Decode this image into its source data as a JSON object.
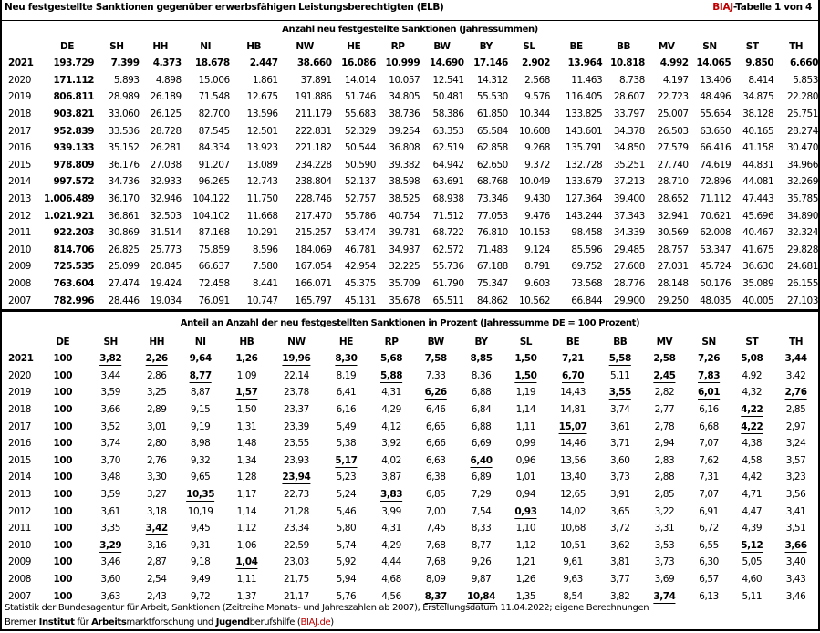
{
  "header": {
    "title": "Neu festgestellte Sanktionen gegenüber erwerbsfähigen Leistungsberechtigten (ELB)",
    "tag_brand": "BIAJ",
    "tag_rest": "-Tabelle 1 von 4",
    "brand_color": "#c00000"
  },
  "columns": [
    "DE",
    "SH",
    "HH",
    "NI",
    "HB",
    "NW",
    "HE",
    "RP",
    "BW",
    "BY",
    "SL",
    "BE",
    "BB",
    "MV",
    "SN",
    "ST",
    "TH"
  ],
  "absolute": {
    "caption": "Anzahl neu festgestellte Sanktionen (Jahressummen)",
    "rows": [
      {
        "year": "2021",
        "bold": true,
        "values": [
          "193.729",
          "7.399",
          "4.373",
          "18.678",
          "2.447",
          "38.660",
          "16.086",
          "10.999",
          "14.690",
          "17.146",
          "2.902",
          "13.964",
          "10.818",
          "4.992",
          "14.065",
          "9.850",
          "6.660"
        ]
      },
      {
        "year": "2020",
        "values": [
          "171.112",
          "5.893",
          "4.898",
          "15.006",
          "1.861",
          "37.891",
          "14.014",
          "10.057",
          "12.541",
          "14.312",
          "2.568",
          "11.463",
          "8.738",
          "4.197",
          "13.406",
          "8.414",
          "5.853"
        ]
      },
      {
        "year": "2019",
        "values": [
          "806.811",
          "28.989",
          "26.189",
          "71.548",
          "12.675",
          "191.886",
          "51.746",
          "34.805",
          "50.481",
          "55.530",
          "9.576",
          "116.405",
          "28.607",
          "22.723",
          "48.496",
          "34.875",
          "22.280"
        ]
      },
      {
        "year": "2018",
        "values": [
          "903.821",
          "33.060",
          "26.125",
          "82.700",
          "13.596",
          "211.179",
          "55.683",
          "38.736",
          "58.386",
          "61.850",
          "10.344",
          "133.825",
          "33.797",
          "25.007",
          "55.654",
          "38.128",
          "25.751"
        ]
      },
      {
        "year": "2017",
        "values": [
          "952.839",
          "33.536",
          "28.728",
          "87.545",
          "12.501",
          "222.831",
          "52.329",
          "39.254",
          "63.353",
          "65.584",
          "10.608",
          "143.601",
          "34.378",
          "26.503",
          "63.650",
          "40.165",
          "28.274"
        ]
      },
      {
        "year": "2016",
        "values": [
          "939.133",
          "35.152",
          "26.281",
          "84.334",
          "13.923",
          "221.182",
          "50.544",
          "36.808",
          "62.519",
          "62.858",
          "9.268",
          "135.791",
          "34.850",
          "27.579",
          "66.416",
          "41.158",
          "30.470"
        ]
      },
      {
        "year": "2015",
        "values": [
          "978.809",
          "36.176",
          "27.038",
          "91.207",
          "13.089",
          "234.228",
          "50.590",
          "39.382",
          "64.942",
          "62.650",
          "9.372",
          "132.728",
          "35.251",
          "27.740",
          "74.619",
          "44.831",
          "34.966"
        ]
      },
      {
        "year": "2014",
        "values": [
          "997.572",
          "34.736",
          "32.933",
          "96.265",
          "12.743",
          "238.804",
          "52.137",
          "38.598",
          "63.691",
          "68.768",
          "10.049",
          "133.679",
          "37.213",
          "28.710",
          "72.896",
          "44.081",
          "32.269"
        ]
      },
      {
        "year": "2013",
        "values": [
          "1.006.489",
          "36.170",
          "32.946",
          "104.122",
          "11.750",
          "228.746",
          "52.757",
          "38.525",
          "68.938",
          "73.346",
          "9.430",
          "127.364",
          "39.400",
          "28.652",
          "71.112",
          "47.443",
          "35.785"
        ]
      },
      {
        "year": "2012",
        "values": [
          "1.021.921",
          "36.861",
          "32.503",
          "104.102",
          "11.668",
          "217.470",
          "55.786",
          "40.754",
          "71.512",
          "77.053",
          "9.476",
          "143.244",
          "37.343",
          "32.941",
          "70.621",
          "45.696",
          "34.890"
        ]
      },
      {
        "year": "2011",
        "values": [
          "922.203",
          "30.869",
          "31.514",
          "87.168",
          "10.291",
          "215.257",
          "53.474",
          "39.781",
          "68.722",
          "76.810",
          "10.153",
          "98.458",
          "34.339",
          "30.569",
          "62.008",
          "40.467",
          "32.324"
        ]
      },
      {
        "year": "2010",
        "values": [
          "814.706",
          "26.825",
          "25.773",
          "75.859",
          "8.596",
          "184.069",
          "46.781",
          "34.937",
          "62.572",
          "71.483",
          "9.124",
          "85.596",
          "29.485",
          "28.757",
          "53.347",
          "41.675",
          "29.828"
        ]
      },
      {
        "year": "2009",
        "values": [
          "725.535",
          "25.099",
          "20.845",
          "66.637",
          "7.580",
          "167.054",
          "42.954",
          "32.225",
          "55.736",
          "67.188",
          "8.791",
          "69.752",
          "27.608",
          "27.031",
          "45.724",
          "36.630",
          "24.681"
        ]
      },
      {
        "year": "2008",
        "values": [
          "763.604",
          "27.474",
          "19.424",
          "72.458",
          "8.441",
          "166.071",
          "45.375",
          "35.709",
          "61.790",
          "75.347",
          "9.603",
          "73.568",
          "28.776",
          "28.148",
          "50.176",
          "35.089",
          "26.155"
        ]
      },
      {
        "year": "2007",
        "values": [
          "782.996",
          "28.446",
          "19.034",
          "76.091",
          "10.747",
          "165.797",
          "45.131",
          "35.678",
          "65.511",
          "84.862",
          "10.562",
          "66.844",
          "29.900",
          "29.250",
          "48.035",
          "40.005",
          "27.103"
        ]
      }
    ]
  },
  "percent": {
    "caption": "Anteil an Anzahl der neu festgestellten Sanktionen in Prozent (Jahressumme DE = 100 Prozent)",
    "rows": [
      {
        "year": "2021",
        "bold": true,
        "values": [
          "100",
          "3,82",
          "2,26",
          "9,64",
          "1,26",
          "19,96",
          "8,30",
          "5,68",
          "7,58",
          "8,85",
          "1,50",
          "7,21",
          "5,58",
          "2,58",
          "7,26",
          "5,08",
          "3,44"
        ],
        "underlined": [
          1,
          2,
          5,
          6,
          12
        ]
      },
      {
        "year": "2020",
        "values": [
          "100",
          "3,44",
          "2,86",
          "8,77",
          "1,09",
          "22,14",
          "8,19",
          "5,88",
          "7,33",
          "8,36",
          "1,50",
          "6,70",
          "5,11",
          "2,45",
          "7,83",
          "4,92",
          "3,42"
        ],
        "underlined": [
          3,
          7,
          10,
          11,
          13,
          14
        ]
      },
      {
        "year": "2019",
        "values": [
          "100",
          "3,59",
          "3,25",
          "8,87",
          "1,57",
          "23,78",
          "6,41",
          "4,31",
          "6,26",
          "6,88",
          "1,19",
          "14,43",
          "3,55",
          "2,82",
          "6,01",
          "4,32",
          "2,76"
        ],
        "underlined": [
          4,
          8,
          12,
          14,
          16
        ]
      },
      {
        "year": "2018",
        "values": [
          "100",
          "3,66",
          "2,89",
          "9,15",
          "1,50",
          "23,37",
          "6,16",
          "4,29",
          "6,46",
          "6,84",
          "1,14",
          "14,81",
          "3,74",
          "2,77",
          "6,16",
          "4,22",
          "2,85"
        ],
        "underlined": [
          15
        ]
      },
      {
        "year": "2017",
        "values": [
          "100",
          "3,52",
          "3,01",
          "9,19",
          "1,31",
          "23,39",
          "5,49",
          "4,12",
          "6,65",
          "6,88",
          "1,11",
          "15,07",
          "3,61",
          "2,78",
          "6,68",
          "4,22",
          "2,97"
        ],
        "underlined": [
          11,
          15
        ]
      },
      {
        "year": "2016",
        "values": [
          "100",
          "3,74",
          "2,80",
          "8,98",
          "1,48",
          "23,55",
          "5,38",
          "3,92",
          "6,66",
          "6,69",
          "0,99",
          "14,46",
          "3,71",
          "2,94",
          "7,07",
          "4,38",
          "3,24"
        ],
        "underlined": []
      },
      {
        "year": "2015",
        "values": [
          "100",
          "3,70",
          "2,76",
          "9,32",
          "1,34",
          "23,93",
          "5,17",
          "4,02",
          "6,63",
          "6,40",
          "0,96",
          "13,56",
          "3,60",
          "2,83",
          "7,62",
          "4,58",
          "3,57"
        ],
        "underlined": [
          6,
          9
        ]
      },
      {
        "year": "2014",
        "values": [
          "100",
          "3,48",
          "3,30",
          "9,65",
          "1,28",
          "23,94",
          "5,23",
          "3,87",
          "6,38",
          "6,89",
          "1,01",
          "13,40",
          "3,73",
          "2,88",
          "7,31",
          "4,42",
          "3,23"
        ],
        "underlined": [
          5
        ]
      },
      {
        "year": "2013",
        "values": [
          "100",
          "3,59",
          "3,27",
          "10,35",
          "1,17",
          "22,73",
          "5,24",
          "3,83",
          "6,85",
          "7,29",
          "0,94",
          "12,65",
          "3,91",
          "2,85",
          "7,07",
          "4,71",
          "3,56"
        ],
        "underlined": [
          3,
          7
        ]
      },
      {
        "year": "2012",
        "values": [
          "100",
          "3,61",
          "3,18",
          "10,19",
          "1,14",
          "21,28",
          "5,46",
          "3,99",
          "7,00",
          "7,54",
          "0,93",
          "14,02",
          "3,65",
          "3,22",
          "6,91",
          "4,47",
          "3,41"
        ],
        "underlined": [
          10
        ]
      },
      {
        "year": "2011",
        "values": [
          "100",
          "3,35",
          "3,42",
          "9,45",
          "1,12",
          "23,34",
          "5,80",
          "4,31",
          "7,45",
          "8,33",
          "1,10",
          "10,68",
          "3,72",
          "3,31",
          "6,72",
          "4,39",
          "3,51"
        ],
        "underlined": [
          2
        ]
      },
      {
        "year": "2010",
        "values": [
          "100",
          "3,29",
          "3,16",
          "9,31",
          "1,06",
          "22,59",
          "5,74",
          "4,29",
          "7,68",
          "8,77",
          "1,12",
          "10,51",
          "3,62",
          "3,53",
          "6,55",
          "5,12",
          "3,66"
        ],
        "underlined": [
          1,
          15,
          16
        ]
      },
      {
        "year": "2009",
        "values": [
          "100",
          "3,46",
          "2,87",
          "9,18",
          "1,04",
          "23,03",
          "5,92",
          "4,44",
          "7,68",
          "9,26",
          "1,21",
          "9,61",
          "3,81",
          "3,73",
          "6,30",
          "5,05",
          "3,40"
        ],
        "underlined": [
          4
        ]
      },
      {
        "year": "2008",
        "values": [
          "100",
          "3,60",
          "2,54",
          "9,49",
          "1,11",
          "21,75",
          "5,94",
          "4,68",
          "8,09",
          "9,87",
          "1,26",
          "9,63",
          "3,77",
          "3,69",
          "6,57",
          "4,60",
          "3,43"
        ],
        "underlined": []
      },
      {
        "year": "2007",
        "values": [
          "100",
          "3,63",
          "2,43",
          "9,72",
          "1,37",
          "21,17",
          "5,76",
          "4,56",
          "8,37",
          "10,84",
          "1,35",
          "8,54",
          "3,82",
          "3,74",
          "6,13",
          "5,11",
          "3,46"
        ],
        "underlined": [
          8,
          9,
          13
        ]
      }
    ]
  },
  "footer": {
    "source": "Statistik der Bundesagentur für Arbeit, Sanktionen (Zeitreihe Monats- und Jahreszahlen ab 2007), Erstellungsdatum 11.04.2022; eigene Berechnungen",
    "org_parts": [
      {
        "text": "Bremer ",
        "style": "normal"
      },
      {
        "text": "Institut",
        "style": "bold"
      },
      {
        "text": " für ",
        "style": "normal"
      },
      {
        "text": "Arbeits",
        "style": "bold"
      },
      {
        "text": "marktforschung und ",
        "style": "normal"
      },
      {
        "text": "Jugend",
        "style": "bold"
      },
      {
        "text": "berufshilfe (",
        "style": "normal"
      },
      {
        "text": "BIAJ.de",
        "style": "red"
      },
      {
        "text": ")",
        "style": "normal"
      }
    ]
  }
}
